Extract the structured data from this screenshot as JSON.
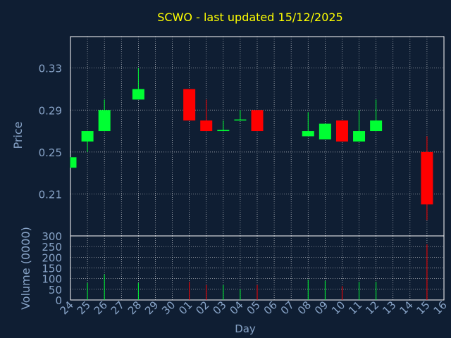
{
  "chart_data": {
    "type": "candlestick",
    "title": "SCWO - last updated 15/12/2025",
    "xlabel": "Day",
    "price_panel": {
      "ylabel": "Price",
      "ylim": [
        0.17,
        0.36
      ],
      "yticks": [
        "0.33",
        "0.29",
        "0.25",
        "0.21"
      ],
      "ytick_values": [
        0.33,
        0.29,
        0.25,
        0.21
      ]
    },
    "volume_panel": {
      "ylabel": "Volume (0000)",
      "ylim": [
        0,
        300
      ],
      "yticks": [
        "300",
        "250",
        "200",
        "150",
        "100",
        "50",
        "0"
      ],
      "ytick_values": [
        300,
        250,
        200,
        150,
        100,
        50,
        0
      ]
    },
    "x_labels": [
      "24",
      "25",
      "26",
      "27",
      "28",
      "29",
      "30",
      "01",
      "02",
      "03",
      "04",
      "05",
      "06",
      "07",
      "08",
      "09",
      "10",
      "11",
      "12",
      "13",
      "14",
      "15",
      "16"
    ],
    "grid": true,
    "candles": [
      {
        "day": "24",
        "open": 0.235,
        "high": 0.245,
        "low": 0.235,
        "close": 0.245,
        "volume": 0
      },
      {
        "day": "25",
        "open": 0.26,
        "high": 0.27,
        "low": 0.25,
        "close": 0.27,
        "volume": 80
      },
      {
        "day": "26",
        "open": 0.27,
        "high": 0.3,
        "low": 0.27,
        "close": 0.29,
        "volume": 120
      },
      {
        "day": "28",
        "open": 0.3,
        "high": 0.33,
        "low": 0.3,
        "close": 0.31,
        "volume": 80
      },
      {
        "day": "01",
        "open": 0.31,
        "high": 0.31,
        "low": 0.28,
        "close": 0.28,
        "volume": 85
      },
      {
        "day": "02",
        "open": 0.28,
        "high": 0.3,
        "low": 0.27,
        "close": 0.27,
        "volume": 70
      },
      {
        "day": "03",
        "open": 0.27,
        "high": 0.28,
        "low": 0.27,
        "close": 0.271,
        "volume": 70
      },
      {
        "day": "04",
        "open": 0.28,
        "high": 0.29,
        "low": 0.28,
        "close": 0.281,
        "volume": 50
      },
      {
        "day": "05",
        "open": 0.29,
        "high": 0.29,
        "low": 0.27,
        "close": 0.27,
        "volume": 70
      },
      {
        "day": "08",
        "open": 0.265,
        "high": 0.288,
        "low": 0.265,
        "close": 0.27,
        "volume": 95
      },
      {
        "day": "09",
        "open": 0.262,
        "high": 0.277,
        "low": 0.262,
        "close": 0.277,
        "volume": 90
      },
      {
        "day": "10",
        "open": 0.28,
        "high": 0.28,
        "low": 0.26,
        "close": 0.26,
        "volume": 65
      },
      {
        "day": "11",
        "open": 0.26,
        "high": 0.29,
        "low": 0.26,
        "close": 0.27,
        "volume": 85
      },
      {
        "day": "12",
        "open": 0.27,
        "high": 0.3,
        "low": 0.27,
        "close": 0.28,
        "volume": 85
      },
      {
        "day": "15",
        "open": 0.25,
        "high": 0.265,
        "low": 0.185,
        "close": 0.2,
        "volume": 260
      }
    ],
    "colors": {
      "background": "#0f1e33",
      "title": "#ffff00",
      "axis_text": "#88a4c8",
      "up": "#00ff33",
      "down": "#ff0000",
      "grid": "#ffffff",
      "frame": "#ffffff"
    }
  }
}
